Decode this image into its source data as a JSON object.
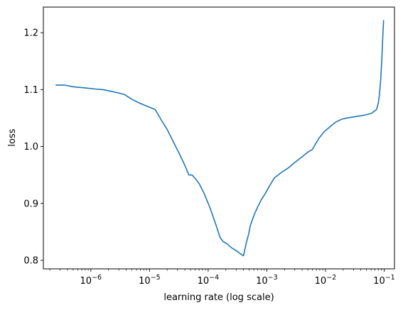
{
  "chart_data": {
    "type": "line",
    "title": "",
    "xlabel": "learning rate (log scale)",
    "ylabel": "loss",
    "xscale": "log",
    "xlim": [
      1.55e-07,
      0.15
    ],
    "ylim": [
      0.785,
      1.245
    ],
    "grid": false,
    "line_color": "#1f77b4",
    "x_ticks": [
      {
        "value": 1e-06,
        "base": "10",
        "exp": "−6"
      },
      {
        "value": 1e-05,
        "base": "10",
        "exp": "−5"
      },
      {
        "value": 0.0001,
        "base": "10",
        "exp": "−4"
      },
      {
        "value": 0.001,
        "base": "10",
        "exp": "−3"
      },
      {
        "value": 0.01,
        "base": "10",
        "exp": "−2"
      },
      {
        "value": 0.1,
        "base": "10",
        "exp": "−1"
      }
    ],
    "y_ticks": [
      {
        "value": 0.8,
        "label": "0.8"
      },
      {
        "value": 0.9,
        "label": "0.9"
      },
      {
        "value": 1.0,
        "label": "1.0"
      },
      {
        "value": 1.1,
        "label": "1.1"
      },
      {
        "value": 1.2,
        "label": "1.2"
      }
    ],
    "series": [
      {
        "x": [
          2.5e-07,
          3e-07,
          3.5e-07,
          5e-07,
          8e-07,
          1.2e-06,
          1.6e-06,
          2.2e-06,
          3e-06,
          3.8e-06,
          5e-06,
          6.5e-06,
          9e-06,
          1.25e-05,
          1.6e-05,
          2e-05,
          2.5e-05,
          3.2e-05,
          4e-05,
          4.7e-05,
          5.3e-05,
          6e-05,
          7e-05,
          8.5e-05,
          0.000105,
          0.00013,
          0.00016,
          0.00018,
          0.00021,
          0.00025,
          0.0003,
          0.00035,
          0.0004,
          0.00045,
          0.00049,
          0.00052,
          0.00056,
          0.00062,
          0.0007,
          0.0008,
          0.00095,
          0.0011,
          0.00135,
          0.0018,
          0.0023,
          0.003,
          0.004,
          0.005,
          0.006,
          0.0068,
          0.0078,
          0.0095,
          0.012,
          0.015,
          0.019,
          0.023,
          0.03,
          0.04,
          0.05,
          0.06,
          0.068,
          0.074,
          0.079,
          0.083,
          0.087,
          0.091,
          0.094,
          0.096,
          0.098
        ],
        "y": [
          1.108,
          1.108,
          1.108,
          1.105,
          1.103,
          1.101,
          1.1,
          1.097,
          1.094,
          1.091,
          1.083,
          1.077,
          1.071,
          1.065,
          1.046,
          1.03,
          1.01,
          0.988,
          0.967,
          0.95,
          0.95,
          0.944,
          0.935,
          0.918,
          0.895,
          0.868,
          0.84,
          0.833,
          0.829,
          0.822,
          0.817,
          0.812,
          0.808,
          0.832,
          0.846,
          0.86,
          0.87,
          0.882,
          0.894,
          0.906,
          0.918,
          0.93,
          0.945,
          0.955,
          0.962,
          0.972,
          0.982,
          0.99,
          0.995,
          1.005,
          1.015,
          1.026,
          1.035,
          1.043,
          1.048,
          1.05,
          1.052,
          1.054,
          1.056,
          1.058,
          1.062,
          1.065,
          1.075,
          1.09,
          1.115,
          1.15,
          1.185,
          1.205,
          1.222
        ]
      }
    ]
  }
}
